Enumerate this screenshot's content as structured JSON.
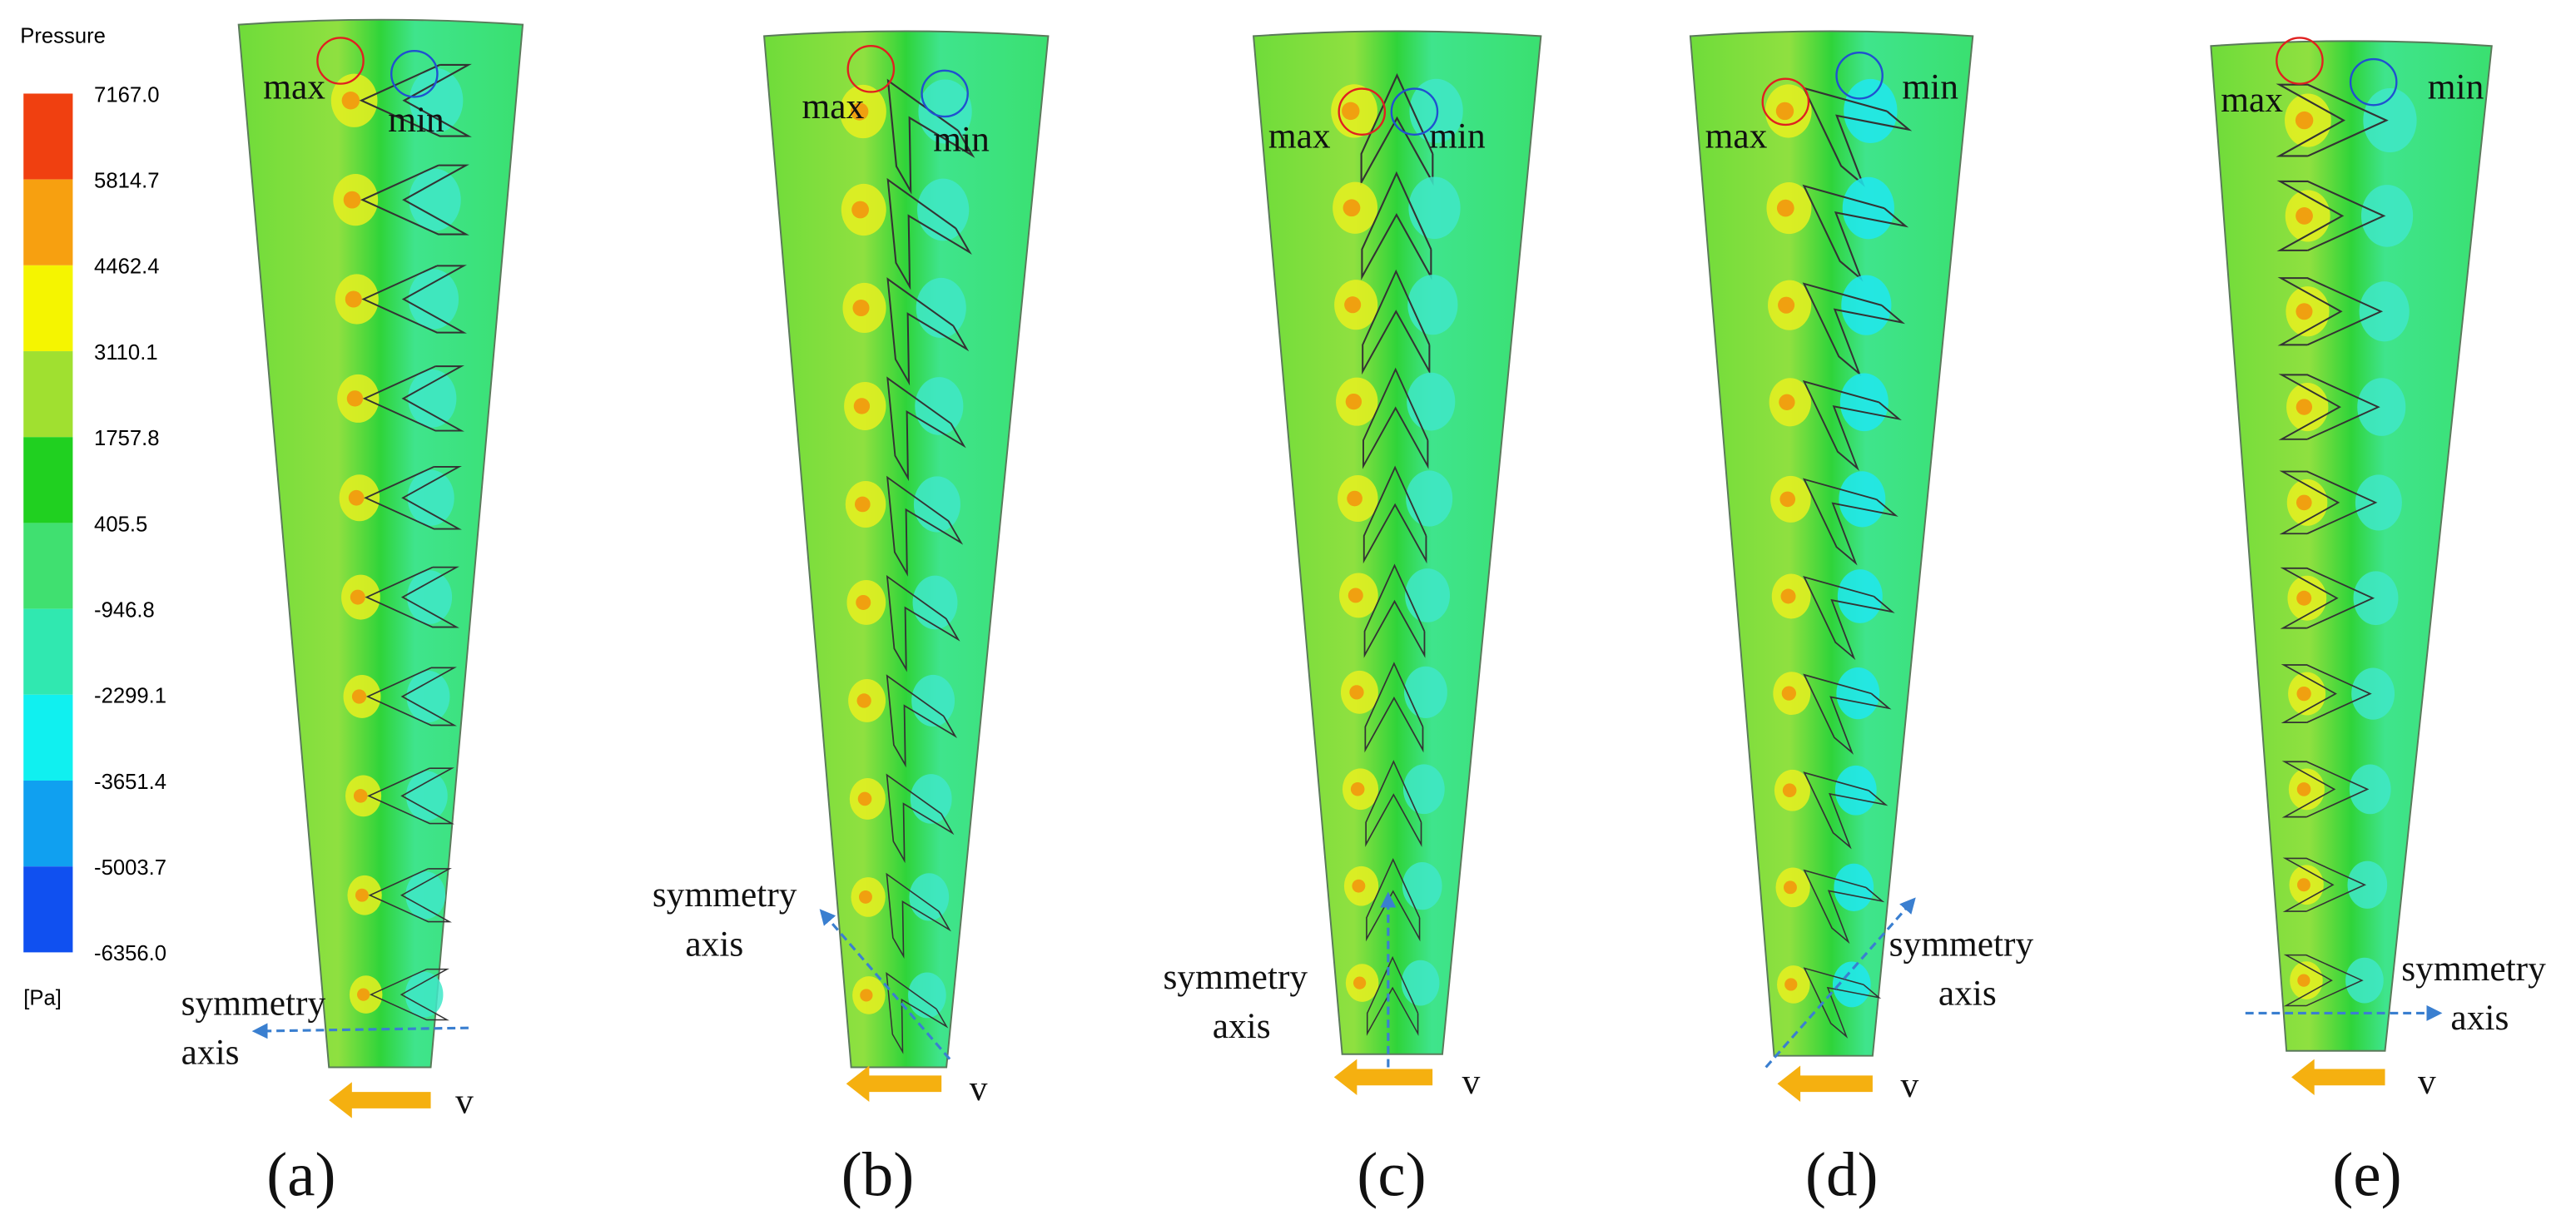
{
  "legend": {
    "title": "Pressure",
    "labels": [
      "7167.0",
      "5814.7",
      "4462.4",
      "3110.1",
      "1757.8",
      "405.5",
      "-946.8",
      "-2299.1",
      "-3651.4",
      "-5003.7",
      "-6356.0"
    ],
    "unit": "[Pa]"
  },
  "panels": [
    {
      "label": "(a)",
      "max": "max",
      "min": "min",
      "axis_label": [
        "symmetry",
        "axis"
      ],
      "velocity": "v"
    },
    {
      "label": "(b)",
      "max": "max",
      "min": "min",
      "axis_label": [
        "symmetry",
        "axis"
      ],
      "velocity": "v"
    },
    {
      "label": "(c)",
      "max": "max",
      "min": "min",
      "axis_label": [
        "symmetry",
        "axis"
      ],
      "velocity": "v"
    },
    {
      "label": "(d)",
      "max": "max",
      "min": "min",
      "axis_label": [
        "symmetry",
        "axis"
      ],
      "velocity": "v"
    },
    {
      "label": "(e)",
      "max": "max",
      "min": "min",
      "axis_label": [
        "symmetry",
        "axis"
      ],
      "velocity": "v"
    }
  ]
}
